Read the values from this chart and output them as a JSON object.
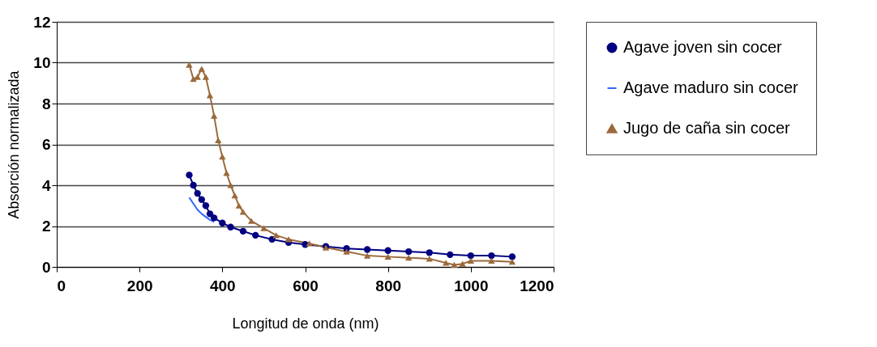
{
  "chart_data": {
    "type": "line",
    "xlabel": "Longitud de onda (nm)",
    "ylabel": "Absorción normalizada",
    "xlim": [
      0,
      1200
    ],
    "xticks": [
      0,
      200,
      400,
      600,
      800,
      1000,
      1200
    ],
    "ylim": [
      0,
      12
    ],
    "yticks": [
      0,
      2,
      4,
      6,
      8,
      10,
      12
    ],
    "grid": "y",
    "legend": "right",
    "line_style": "solid",
    "series": [
      {
        "name": "Agave joven sin cocer",
        "color": "#000080",
        "marker": "circle",
        "x": [
          320,
          330,
          340,
          350,
          360,
          370,
          380,
          400,
          420,
          450,
          480,
          520,
          560,
          600,
          650,
          700,
          750,
          800,
          850,
          900,
          950,
          1000,
          1050,
          1100
        ],
        "values": [
          4.5,
          4.0,
          3.6,
          3.3,
          3.0,
          2.6,
          2.4,
          2.15,
          1.95,
          1.75,
          1.55,
          1.35,
          1.2,
          1.1,
          1.0,
          0.9,
          0.85,
          0.8,
          0.75,
          0.7,
          0.6,
          0.55,
          0.55,
          0.5
        ]
      },
      {
        "name": "Agave maduro sin cocer",
        "color": "#3366ff",
        "marker": "none",
        "x": [
          320,
          330,
          340,
          350,
          360,
          370,
          380
        ],
        "values": [
          3.4,
          3.1,
          2.8,
          2.6,
          2.45,
          2.3,
          2.2
        ]
      },
      {
        "name": "Jugo de caña sin cocer",
        "color": "#9b6a3c",
        "marker": "triangle",
        "x": [
          320,
          330,
          340,
          350,
          360,
          370,
          380,
          390,
          400,
          410,
          420,
          430,
          440,
          450,
          470,
          500,
          530,
          560,
          610,
          650,
          700,
          750,
          800,
          850,
          900,
          940,
          960,
          980,
          1000,
          1050,
          1100
        ],
        "values": [
          9.9,
          9.2,
          9.3,
          9.7,
          9.3,
          8.4,
          7.4,
          6.2,
          5.4,
          4.6,
          4.0,
          3.5,
          3.0,
          2.7,
          2.25,
          1.9,
          1.55,
          1.35,
          1.15,
          0.95,
          0.75,
          0.55,
          0.5,
          0.45,
          0.4,
          0.2,
          0.1,
          0.15,
          0.3,
          0.3,
          0.25
        ]
      }
    ]
  }
}
